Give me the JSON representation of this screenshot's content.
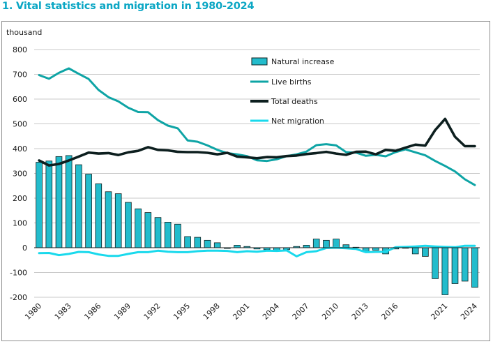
{
  "chart_data": {
    "type": "bar+line",
    "title": "1. Vital statistics and migration in 1980-2024",
    "ylabel": "thousand",
    "ylim": [
      -200,
      800
    ],
    "yticks": [
      800,
      700,
      600,
      500,
      400,
      300,
      200,
      100,
      0,
      -100,
      -200
    ],
    "grid": true,
    "x": [
      1980,
      1981,
      1982,
      1983,
      1984,
      1985,
      1986,
      1987,
      1988,
      1989,
      1990,
      1991,
      1992,
      1993,
      1994,
      1995,
      1996,
      1997,
      1998,
      1999,
      2000,
      2001,
      2002,
      2003,
      2004,
      2005,
      2006,
      2007,
      2008,
      2009,
      2010,
      2011,
      2012,
      2013,
      2014,
      2015,
      2016,
      2017,
      2018,
      2019,
      2020,
      2021,
      2022,
      2023,
      2024
    ],
    "x_tick_labels": [
      "1980",
      "1983",
      "1986",
      "1989",
      "1992",
      "1995",
      "1998",
      "2001",
      "2004",
      "2007",
      "2010",
      "2013",
      "2016",
      "2021",
      "2024"
    ],
    "series": [
      {
        "name": "Natural increase",
        "kind": "bar",
        "color": "#23bccc",
        "values": [
          345,
          350,
          368,
          372,
          335,
          297,
          258,
          226,
          218,
          183,
          157,
          142,
          122,
          103,
          95,
          45,
          42,
          30,
          20,
          -3,
          10,
          5,
          -5,
          -8,
          -10,
          -8,
          5,
          10,
          35,
          30,
          35,
          12,
          2,
          -15,
          -10,
          -25,
          -5,
          -2,
          -25,
          -35,
          -125,
          -190,
          -145,
          -135,
          -160
        ]
      },
      {
        "name": "Live births",
        "kind": "line",
        "color": "#0ea4a5",
        "values": [
          697,
          682,
          706,
          724,
          702,
          681,
          637,
          608,
          591,
          565,
          548,
          547,
          515,
          493,
          482,
          433,
          428,
          413,
          395,
          382,
          377,
          370,
          353,
          350,
          357,
          370,
          377,
          388,
          414,
          418,
          413,
          386,
          384,
          371,
          375,
          369,
          386,
          397,
          385,
          373,
          350,
          330,
          308,
          276,
          253
        ]
      },
      {
        "name": "Total deaths",
        "kind": "line",
        "color": "#0d1f1f",
        "values": [
          352,
          332,
          338,
          352,
          368,
          384,
          380,
          382,
          374,
          385,
          391,
          406,
          395,
          393,
          387,
          386,
          386,
          383,
          377,
          383,
          368,
          365,
          361,
          366,
          365,
          370,
          372,
          378,
          382,
          387,
          380,
          375,
          387,
          388,
          377,
          395,
          391,
          404,
          416,
          412,
          475,
          520,
          448,
          410,
          410
        ]
      },
      {
        "name": "Net migration",
        "kind": "line",
        "color": "#19d9ec",
        "values": [
          -22,
          -21,
          -30,
          -25,
          -17,
          -18,
          -27,
          -33,
          -33,
          -25,
          -18,
          -18,
          -12,
          -16,
          -18,
          -18,
          -14,
          -12,
          -12,
          -13,
          -18,
          -14,
          -16,
          -12,
          -13,
          -11,
          -35,
          -18,
          -14,
          -1,
          0,
          -2,
          -5,
          -18,
          -17,
          -16,
          2,
          3,
          5,
          8,
          5,
          3,
          2,
          8,
          8
        ]
      }
    ]
  }
}
